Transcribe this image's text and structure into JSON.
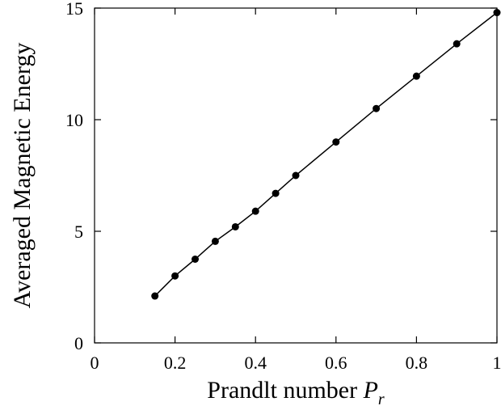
{
  "chart_data": {
    "type": "line",
    "xlabel": {
      "text": "Prandlt number",
      "symbol": "P",
      "subscript": "r"
    },
    "ylabel": "Averaged Magnetic Energy",
    "x": [
      0.15,
      0.2,
      0.25,
      0.3,
      0.35,
      0.4,
      0.45,
      0.5,
      0.6,
      0.7,
      0.8,
      0.9,
      1.0
    ],
    "series": [
      {
        "color": "#000000",
        "values": [
          2.1,
          3.0,
          3.75,
          4.55,
          5.2,
          5.9,
          6.7,
          7.5,
          9.0,
          10.5,
          11.95,
          13.4,
          14.8
        ]
      }
    ],
    "xlim": [
      0,
      1
    ],
    "xticks": [
      0,
      0.2,
      0.4,
      0.6,
      0.8,
      1
    ],
    "ylim": [
      0,
      15
    ],
    "yticks": [
      0,
      5,
      10,
      15
    ]
  }
}
